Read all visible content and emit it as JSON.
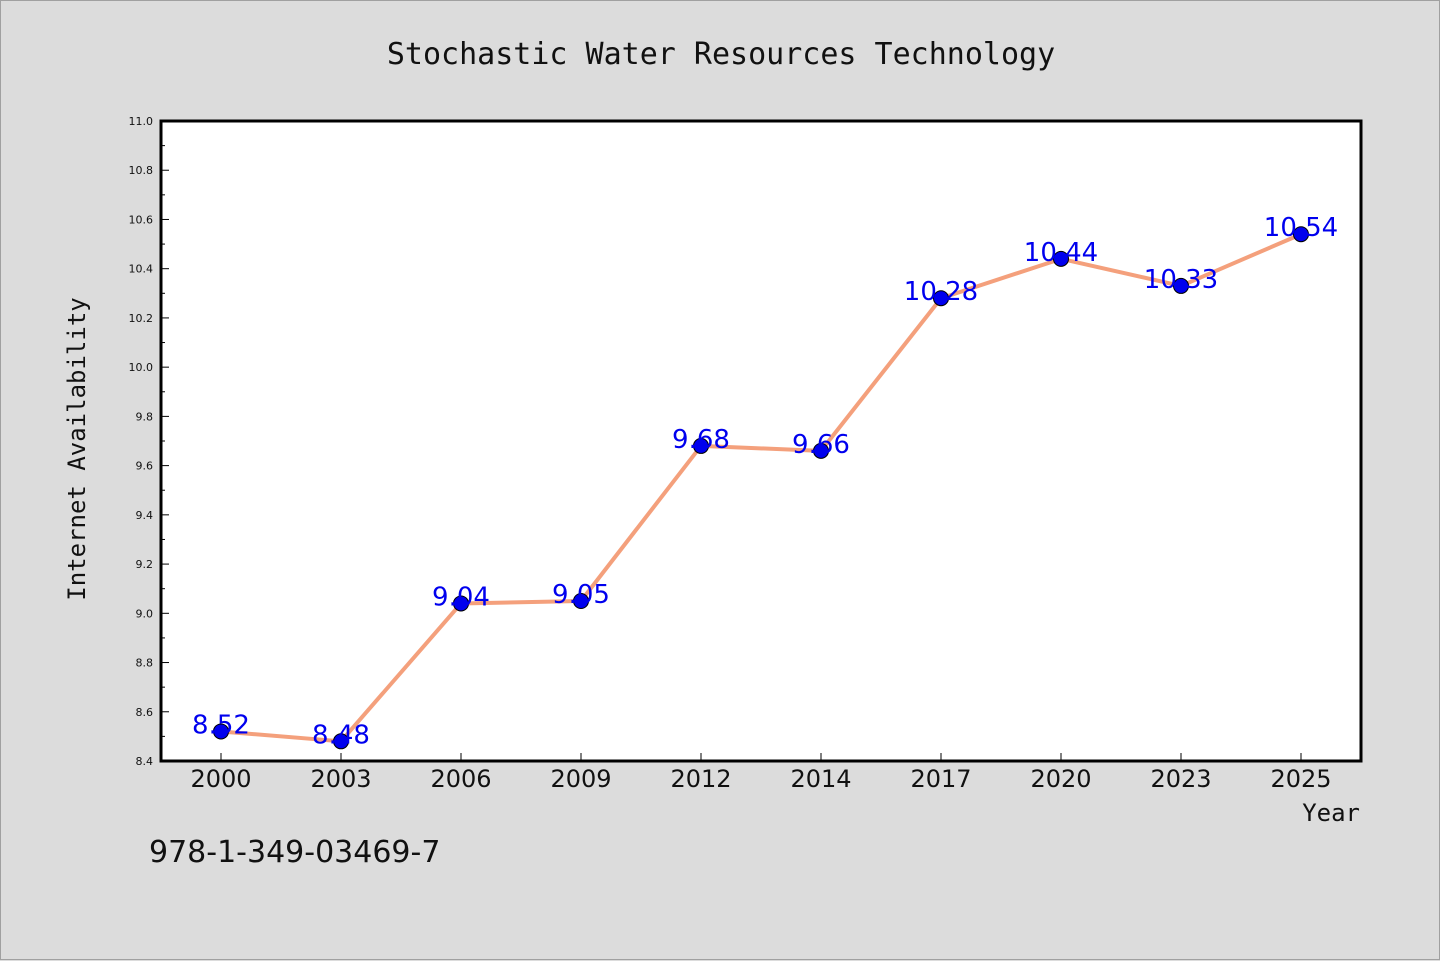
{
  "chart_data": {
    "type": "line",
    "title": "Stochastic Water Resources Technology",
    "xlabel": "Year",
    "ylabel": "Internet Availability",
    "categories": [
      "2000",
      "2003",
      "2006",
      "2009",
      "2012",
      "2014",
      "2017",
      "2020",
      "2023",
      "2025"
    ],
    "series": [
      {
        "values": [
          8.52,
          8.48,
          9.04,
          9.05,
          9.68,
          9.66,
          10.28,
          10.44,
          10.33,
          10.54
        ],
        "labels": [
          "8.52",
          "8.48",
          "9.04",
          "9.05",
          "9.68",
          "9.66",
          "10.28",
          "10.44",
          "10.33",
          "10.54"
        ]
      }
    ],
    "ylim": [
      8.4,
      11.0
    ],
    "yticks": [
      "8.4",
      "8.6",
      "8.8",
      "9.0",
      "9.2",
      "9.4",
      "9.6",
      "9.8",
      "10.0",
      "10.2",
      "10.4",
      "10.6",
      "10.8",
      "11.0"
    ],
    "grid": false,
    "legend": "none",
    "colors": {
      "line": "#f4a07c",
      "marker": "#0000ee",
      "label": "#0000ee",
      "plot_background": "#ffffff",
      "page_background": "#dcdcdc"
    }
  },
  "footer": {
    "isbn": "978-1-349-03469-7"
  }
}
